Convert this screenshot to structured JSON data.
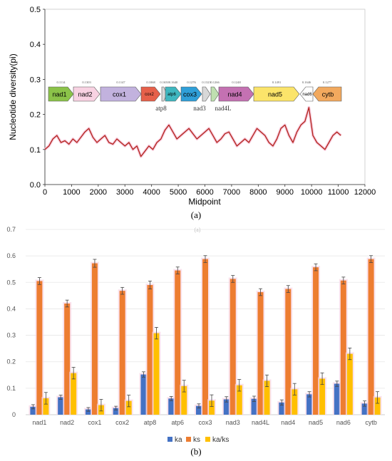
{
  "chart_data": [
    {
      "type": "line",
      "panel": "(a)",
      "xlabel": "Midpoint",
      "ylabel": "Nucleotide diversity(pi)",
      "xlim": [
        0,
        12000
      ],
      "ylim": [
        0,
        0.5
      ],
      "xticks": [
        "0",
        "1000",
        "2000",
        "3000",
        "4000",
        "5000",
        "6000",
        "7000",
        "8000",
        "9000",
        "10000",
        "11000",
        "12000"
      ],
      "yticks": [
        "0.0",
        "0.1",
        "0.2",
        "0.3",
        "0.4",
        "0.5"
      ],
      "line_color": "#b2221b",
      "series": [
        {
          "x": [
            0,
            150,
            300,
            450,
            600,
            750,
            900,
            1050,
            1200,
            1350,
            1500,
            1650,
            1800,
            1950,
            2100,
            2250,
            2400,
            2550,
            2700,
            2850,
            3000,
            3150,
            3300,
            3450,
            3600,
            3750,
            3900,
            4050,
            4200,
            4350,
            4500,
            4650,
            4800,
            4950,
            5100,
            5250,
            5400,
            5550,
            5700,
            5850,
            6000,
            6150,
            6300,
            6450,
            6600,
            6750,
            6900,
            7050,
            7200,
            7350,
            7500,
            7650,
            7800,
            7950,
            8100,
            8250,
            8400,
            8550,
            8700,
            8850,
            9000,
            9150,
            9300,
            9450,
            9600,
            9750,
            9900,
            10050,
            10200,
            10350,
            10500,
            10650,
            10800,
            10950,
            11100
          ],
          "y": [
            0.1,
            0.11,
            0.13,
            0.14,
            0.12,
            0.125,
            0.115,
            0.13,
            0.12,
            0.135,
            0.15,
            0.16,
            0.135,
            0.12,
            0.13,
            0.14,
            0.12,
            0.115,
            0.13,
            0.12,
            0.11,
            0.12,
            0.1,
            0.11,
            0.08,
            0.095,
            0.11,
            0.1,
            0.12,
            0.13,
            0.155,
            0.17,
            0.15,
            0.13,
            0.14,
            0.15,
            0.16,
            0.145,
            0.13,
            0.14,
            0.15,
            0.16,
            0.14,
            0.12,
            0.13,
            0.145,
            0.15,
            0.13,
            0.11,
            0.12,
            0.13,
            0.12,
            0.14,
            0.16,
            0.15,
            0.14,
            0.12,
            0.11,
            0.13,
            0.16,
            0.17,
            0.14,
            0.12,
            0.15,
            0.17,
            0.18,
            0.22,
            0.14,
            0.12,
            0.11,
            0.1,
            0.12,
            0.14,
            0.15,
            0.14
          ]
        }
      ],
      "genes": [
        {
          "name": "nad1",
          "color": "#8bc349",
          "pi": "0.1114"
        },
        {
          "name": "nad2",
          "color": "#f8d2e2",
          "pi": "0.1303"
        },
        {
          "name": "cox1",
          "color": "#c2b2de",
          "pi": "0.1147"
        },
        {
          "name": "cox2",
          "color": "#e6604a",
          "pi": "0.1068"
        },
        {
          "name": "atp8",
          "color": "#d8d8d8",
          "pi": "0.1650"
        },
        {
          "name": "atp6",
          "color": "#3fb7c0",
          "pi": "0.1640"
        },
        {
          "name": "cox3",
          "color": "#2f9fd8",
          "pi": "0.1276"
        },
        {
          "name": "nad3",
          "color": "#d8d8d8",
          "pi": "0.1323"
        },
        {
          "name": "nad4L",
          "color": "#bfe0b0",
          "pi": "0.1266"
        },
        {
          "name": "nad4",
          "color": "#c471b2",
          "pi": "0.1248"
        },
        {
          "name": "nad5",
          "color": "#fbe46a",
          "pi": "0.1491"
        },
        {
          "name": "nad6",
          "color": "#ffffff",
          "pi": "0.1646"
        },
        {
          "name": "cytb",
          "color": "#f2a95e",
          "pi": "0.1277"
        }
      ]
    },
    {
      "type": "bar",
      "panel": "(b)",
      "categories": [
        "nad1",
        "nad2",
        "cox1",
        "cox2",
        "atp8",
        "atp6",
        "cox3",
        "nad3",
        "nad4L",
        "nad4",
        "nad5",
        "nad6",
        "cytb"
      ],
      "ylim": [
        0,
        0.7
      ],
      "yticks": [
        "0",
        "0.1",
        "0.2",
        "0.3",
        "0.4",
        "0.5",
        "0.6",
        "0.7"
      ],
      "series": [
        {
          "name": "ka",
          "color": "#4472c4",
          "values": [
            0.03,
            0.066,
            0.02,
            0.025,
            0.152,
            0.061,
            0.033,
            0.058,
            0.06,
            0.046,
            0.077,
            0.117,
            0.042
          ],
          "errors": [
            0.008,
            0.008,
            0.007,
            0.007,
            0.01,
            0.008,
            0.008,
            0.01,
            0.01,
            0.01,
            0.01,
            0.01,
            0.01
          ]
        },
        {
          "name": "ks",
          "color": "#ed7d31",
          "values": [
            0.505,
            0.42,
            0.572,
            0.468,
            0.49,
            0.545,
            0.588,
            0.513,
            0.463,
            0.475,
            0.557,
            0.507,
            0.588
          ],
          "errors": [
            0.013,
            0.013,
            0.015,
            0.013,
            0.015,
            0.013,
            0.013,
            0.013,
            0.013,
            0.013,
            0.013,
            0.013,
            0.013
          ]
        },
        {
          "name": "ka/ks",
          "color": "#ffc000",
          "values": [
            0.062,
            0.157,
            0.036,
            0.052,
            0.308,
            0.108,
            0.053,
            0.111,
            0.128,
            0.096,
            0.136,
            0.23,
            0.065
          ],
          "errors": [
            0.022,
            0.022,
            0.022,
            0.022,
            0.022,
            0.022,
            0.022,
            0.022,
            0.022,
            0.022,
            0.022,
            0.022,
            0.022
          ]
        }
      ]
    }
  ],
  "labels": {
    "panel_a": "(a)",
    "panel_b": "(b)",
    "stray_mark": "(a)"
  }
}
